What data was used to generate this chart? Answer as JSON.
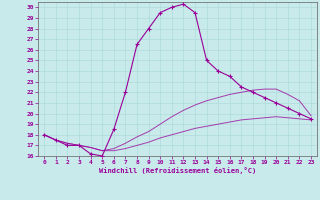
{
  "background_color": "#c8eaea",
  "line_color": "#990099",
  "xlim": [
    -0.5,
    23.5
  ],
  "ylim": [
    16,
    30.5
  ],
  "yticks": [
    16,
    17,
    18,
    19,
    20,
    21,
    22,
    23,
    24,
    25,
    26,
    27,
    28,
    29,
    30
  ],
  "xticks": [
    0,
    1,
    2,
    3,
    4,
    5,
    6,
    7,
    8,
    9,
    10,
    11,
    12,
    13,
    14,
    15,
    16,
    17,
    18,
    19,
    20,
    21,
    22,
    23
  ],
  "xlabel": "Windchill (Refroidissement éolien,°C)",
  "line1_x": [
    0,
    1,
    2,
    3,
    4,
    5,
    6,
    7,
    8,
    9,
    10,
    11,
    12,
    13,
    14,
    15,
    16,
    17,
    18,
    19,
    20,
    21,
    22,
    23
  ],
  "line1_y": [
    18.0,
    17.5,
    17.0,
    17.0,
    16.2,
    16.0,
    18.5,
    22.0,
    26.5,
    28.0,
    29.5,
    30.0,
    30.3,
    29.5,
    25.0,
    24.0,
    23.5,
    22.5,
    22.0,
    21.5,
    21.0,
    20.5,
    20.0,
    19.5
  ],
  "line2_x": [
    0,
    1,
    2,
    3,
    4,
    5,
    6,
    7,
    8,
    9,
    10,
    11,
    12,
    13,
    14,
    15,
    16,
    17,
    18,
    19,
    20,
    21,
    22,
    23
  ],
  "line2_y": [
    18.0,
    17.5,
    17.2,
    17.0,
    16.8,
    16.5,
    16.5,
    16.7,
    17.0,
    17.3,
    17.7,
    18.0,
    18.3,
    18.6,
    18.8,
    19.0,
    19.2,
    19.4,
    19.5,
    19.6,
    19.7,
    19.6,
    19.5,
    19.4
  ],
  "line3_x": [
    0,
    1,
    2,
    3,
    4,
    5,
    6,
    7,
    8,
    9,
    10,
    11,
    12,
    13,
    14,
    15,
    16,
    17,
    18,
    19,
    20,
    21,
    22,
    23
  ],
  "line3_y": [
    18.0,
    17.5,
    17.2,
    17.0,
    16.8,
    16.5,
    16.7,
    17.2,
    17.8,
    18.3,
    19.0,
    19.7,
    20.3,
    20.8,
    21.2,
    21.5,
    21.8,
    22.0,
    22.2,
    22.3,
    22.3,
    21.8,
    21.2,
    19.8
  ]
}
